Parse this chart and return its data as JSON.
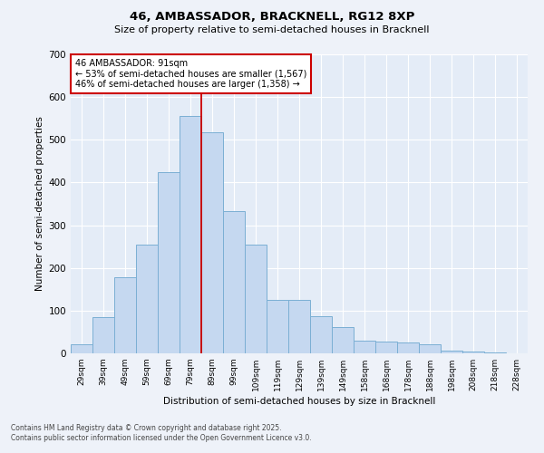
{
  "title1": "46, AMBASSADOR, BRACKNELL, RG12 8XP",
  "title2": "Size of property relative to semi-detached houses in Bracknell",
  "xlabel": "Distribution of semi-detached houses by size in Bracknell",
  "ylabel": "Number of semi-detached properties",
  "bar_color": "#c5d8f0",
  "bar_edge_color": "#7bafd4",
  "bins": [
    "29sqm",
    "39sqm",
    "49sqm",
    "59sqm",
    "69sqm",
    "79sqm",
    "89sqm",
    "99sqm",
    "109sqm",
    "119sqm",
    "129sqm",
    "139sqm",
    "149sqm",
    "158sqm",
    "168sqm",
    "178sqm",
    "188sqm",
    "198sqm",
    "208sqm",
    "218sqm",
    "228sqm"
  ],
  "values": [
    22,
    85,
    178,
    255,
    425,
    555,
    518,
    333,
    255,
    125,
    125,
    88,
    62,
    30,
    27,
    25,
    22,
    7,
    4,
    2,
    0
  ],
  "vline_x_index": 6,
  "vline_color": "#cc0000",
  "annotation_title": "46 AMBASSADOR: 91sqm",
  "annotation_line1": "← 53% of semi-detached houses are smaller (1,567)",
  "annotation_line2": "46% of semi-detached houses are larger (1,358) →",
  "annotation_box_color": "#ffffff",
  "annotation_border_color": "#cc0000",
  "ylim": [
    0,
    700
  ],
  "yticks": [
    0,
    100,
    200,
    300,
    400,
    500,
    600,
    700
  ],
  "footer1": "Contains HM Land Registry data © Crown copyright and database right 2025.",
  "footer2": "Contains public sector information licensed under the Open Government Licence v3.0.",
  "bg_color": "#eef2f9",
  "plot_bg_color": "#e4ecf7"
}
